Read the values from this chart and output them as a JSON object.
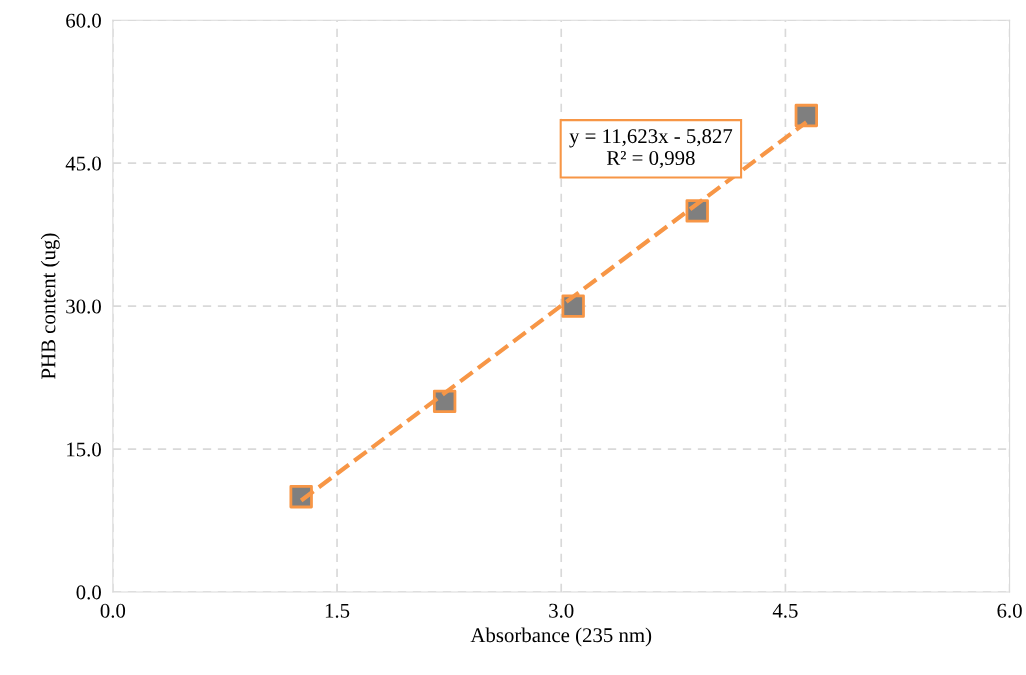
{
  "chart_data": {
    "type": "scatter",
    "xlabel": "Absorbance (235 nm)",
    "ylabel": "PHB content (ug)",
    "series": [
      {
        "color": "#f79646",
        "x": [
          1.26,
          2.22,
          3.08,
          3.91,
          4.64
        ],
        "values": [
          10,
          20,
          30,
          40,
          50
        ],
        "marker": "square"
      },
      {
        "type": "line",
        "color": "#f79646",
        "x": [
          1.26,
          4.64
        ],
        "values": [
          9.6,
          49.3
        ],
        "line_style": "dashed",
        "marker": "none"
      }
    ],
    "annotations": [
      "y = 11,623x - 5,827\nR² = 0,998"
    ],
    "xlim": [
      0,
      6
    ],
    "ylim": [
      0,
      60
    ],
    "xticks": [
      {
        "value": 0,
        "label": "0.0"
      },
      {
        "value": 1.5,
        "label": "1.5"
      },
      {
        "value": 3,
        "label": "3.0"
      },
      {
        "value": 4.5,
        "label": "4.5"
      },
      {
        "value": 6,
        "label": "6.0"
      }
    ],
    "yticks": [
      {
        "value": 0,
        "label": "0.0"
      },
      {
        "value": 15,
        "label": "15.0"
      },
      {
        "value": 30,
        "label": "30.0"
      },
      {
        "value": 45,
        "label": "45.0"
      },
      {
        "value": 60,
        "label": "60.0"
      }
    ],
    "grid": true,
    "legend": false
  }
}
